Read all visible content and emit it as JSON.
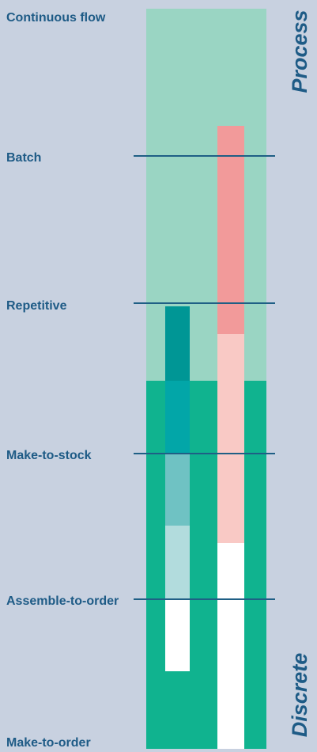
{
  "colors": {
    "background": "#c8d1e0",
    "process_band": "#9ad5c3",
    "discrete_band": "#10b38f",
    "label_text": "#1e5b86",
    "divider_line": "#1f5f85",
    "left_bar_segments": [
      "#009695",
      "#02a6a8",
      "#6fc2c3",
      "#b2dcdd",
      "#ffffff"
    ],
    "right_bar_segments": [
      "#f29a9a",
      "#f9c9c5",
      "#ffffff"
    ]
  },
  "labels": {
    "continuous_flow": "Continuous flow",
    "batch": "Batch",
    "repetitive": "Repetitive",
    "make_to_stock": "Make-to-stock",
    "assemble_to_order": "Assemble-to-order",
    "make_to_order": "Make-to-order"
  },
  "side_labels": {
    "process": "Process",
    "discrete": "Discrete"
  }
}
